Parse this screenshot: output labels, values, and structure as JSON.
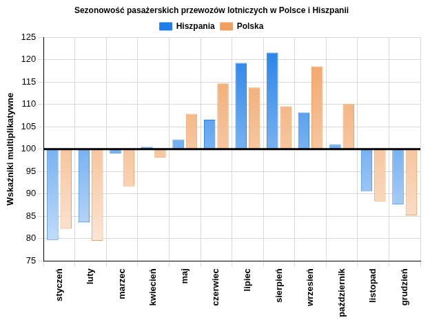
{
  "chart_data": {
    "type": "bar",
    "title": "Sezonowość pasażerskich przewozów lotniczych w Polsce i Hiszpanii",
    "y_label": "Wskaźniki multiplikatywne",
    "categories": [
      "styczeń",
      "luty",
      "marzec",
      "kwiecień",
      "maj",
      "czerwiec",
      "lipiec",
      "sierpień",
      "wrzesień",
      "październik",
      "listopad",
      "grudzień"
    ],
    "series": [
      {
        "name": "Hiszpania",
        "color": "#1f7ee8",
        "values": [
          79.7,
          83.6,
          99.0,
          100.5,
          102.1,
          106.6,
          119.3,
          121.6,
          108.2,
          101.0,
          90.6,
          87.6
        ]
      },
      {
        "name": "Polska",
        "color": "#f0a060",
        "values": [
          82.2,
          79.5,
          91.7,
          98.1,
          107.9,
          114.7,
          113.8,
          109.6,
          118.5,
          110.1,
          88.3,
          85.2
        ]
      }
    ],
    "base": 100,
    "ylim": [
      75,
      125
    ],
    "yticks": [
      75,
      80,
      85,
      90,
      95,
      100,
      105,
      110,
      115,
      120,
      125
    ],
    "grid": true,
    "legend": "top"
  }
}
